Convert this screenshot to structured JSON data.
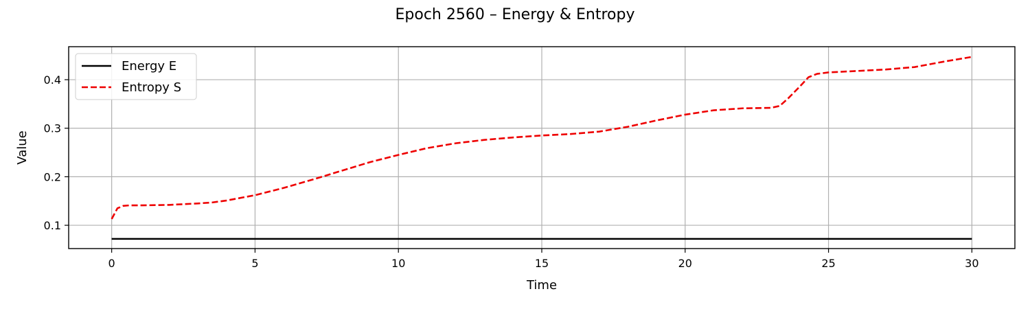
{
  "chart_data": {
    "type": "line",
    "title": "Epoch 2560 – Energy & Entropy",
    "xlabel": "Time",
    "ylabel": "Value",
    "xlim": [
      -1.5,
      31.5
    ],
    "ylim": [
      0.052,
      0.468
    ],
    "xticks": [
      0,
      5,
      10,
      15,
      20,
      25,
      30
    ],
    "yticks": [
      0.1,
      0.2,
      0.3,
      0.4
    ],
    "grid": true,
    "legend_position": "upper-left",
    "series": [
      {
        "name": "Energy E",
        "color": "#000000",
        "style": "solid",
        "x": [
          0,
          5,
          10,
          15,
          20,
          25,
          30
        ],
        "y": [
          0.072,
          0.072,
          0.072,
          0.072,
          0.072,
          0.072,
          0.072
        ]
      },
      {
        "name": "Entropy S",
        "color": "#ee0000",
        "style": "dashed",
        "x": [
          0,
          0.2,
          0.4,
          0.6,
          1,
          2,
          3,
          3.5,
          4,
          5,
          6,
          7,
          8,
          9,
          10,
          11,
          12,
          13,
          14,
          15,
          16,
          17,
          18,
          19,
          20,
          21,
          22,
          23,
          23.3,
          23.6,
          24,
          24.3,
          24.6,
          25,
          26,
          27,
          28,
          29,
          30
        ],
        "y": [
          0.113,
          0.135,
          0.14,
          0.141,
          0.141,
          0.142,
          0.145,
          0.147,
          0.151,
          0.162,
          0.177,
          0.194,
          0.212,
          0.23,
          0.245,
          0.259,
          0.269,
          0.276,
          0.281,
          0.285,
          0.288,
          0.293,
          0.303,
          0.316,
          0.328,
          0.337,
          0.341,
          0.342,
          0.346,
          0.362,
          0.386,
          0.405,
          0.412,
          0.415,
          0.418,
          0.421,
          0.426,
          0.437,
          0.447
        ]
      }
    ]
  }
}
